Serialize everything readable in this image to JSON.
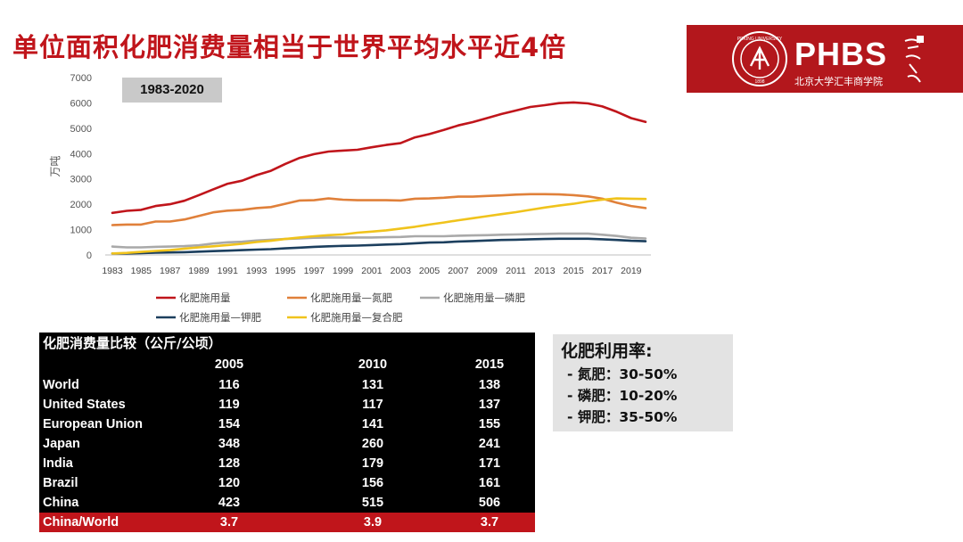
{
  "header": {
    "title": "单位面积化肥消费量相当于世界平均水平近4倍",
    "brand": "PHBS",
    "brand_sub": "北京大学汇丰商学院"
  },
  "chart_data": {
    "type": "line",
    "badge": "1983-2020",
    "ylabel": "万吨",
    "ylim": [
      0,
      7000
    ],
    "yticks": [
      0,
      1000,
      2000,
      3000,
      4000,
      5000,
      6000,
      7000
    ],
    "xticks": [
      "1983",
      "1985",
      "1987",
      "1989",
      "1991",
      "1993",
      "1995",
      "1997",
      "1999",
      "2001",
      "2003",
      "2005",
      "2007",
      "2009",
      "2011",
      "2013",
      "2015",
      "2017",
      "2019"
    ],
    "x": [
      1983,
      1984,
      1985,
      1986,
      1987,
      1988,
      1989,
      1990,
      1991,
      1992,
      1993,
      1994,
      1995,
      1996,
      1997,
      1998,
      1999,
      2000,
      2001,
      2002,
      2003,
      2004,
      2005,
      2006,
      2007,
      2008,
      2009,
      2010,
      2011,
      2012,
      2013,
      2014,
      2015,
      2016,
      2017,
      2018,
      2019,
      2020
    ],
    "series": [
      {
        "name": "化肥施用量",
        "color": "#c0151b",
        "values": [
          1660,
          1740,
          1780,
          1930,
          2000,
          2140,
          2360,
          2590,
          2810,
          2930,
          3150,
          3320,
          3590,
          3830,
          3980,
          4080,
          4120,
          4150,
          4250,
          4340,
          4410,
          4640,
          4770,
          4930,
          5110,
          5240,
          5400,
          5560,
          5700,
          5840,
          5910,
          5990,
          6020,
          5980,
          5860,
          5650,
          5400,
          5250
        ]
      },
      {
        "name": "化肥施用量—氮肥",
        "color": "#e0803a",
        "values": [
          1180,
          1200,
          1200,
          1320,
          1320,
          1400,
          1540,
          1680,
          1750,
          1780,
          1850,
          1890,
          2020,
          2150,
          2160,
          2230,
          2180,
          2160,
          2160,
          2160,
          2150,
          2220,
          2230,
          2260,
          2300,
          2300,
          2330,
          2350,
          2380,
          2400,
          2400,
          2390,
          2360,
          2310,
          2220,
          2060,
          1930,
          1850
        ]
      },
      {
        "name": "化肥施用量—磷肥",
        "color": "#a9a9a9",
        "values": [
          330,
          300,
          300,
          320,
          330,
          350,
          380,
          450,
          500,
          520,
          570,
          600,
          630,
          650,
          680,
          690,
          690,
          690,
          690,
          700,
          710,
          740,
          740,
          740,
          760,
          770,
          780,
          800,
          810,
          820,
          830,
          840,
          840,
          840,
          800,
          750,
          680,
          650
        ]
      },
      {
        "name": "化肥施用量—钾肥",
        "color": "#1c3f5e",
        "values": [
          60,
          60,
          70,
          90,
          100,
          110,
          130,
          150,
          170,
          190,
          210,
          230,
          260,
          290,
          320,
          340,
          360,
          370,
          390,
          410,
          430,
          460,
          490,
          500,
          530,
          550,
          570,
          590,
          600,
          620,
          630,
          640,
          640,
          640,
          620,
          590,
          560,
          540
        ]
      },
      {
        "name": "化肥施用量—复合肥",
        "color": "#f0c31c",
        "values": [
          60,
          80,
          120,
          160,
          190,
          250,
          300,
          340,
          390,
          440,
          510,
          560,
          630,
          690,
          740,
          780,
          810,
          880,
          920,
          970,
          1040,
          1110,
          1200,
          1280,
          1370,
          1450,
          1530,
          1610,
          1690,
          1780,
          1870,
          1950,
          2020,
          2110,
          2180,
          2230,
          2220,
          2210
        ]
      }
    ]
  },
  "table": {
    "caption": "化肥消费量比较（公斤/公顷）",
    "headers": [
      "2005",
      "2010",
      "2015"
    ],
    "rows": [
      {
        "label": "World",
        "v": [
          "116",
          "131",
          "138"
        ]
      },
      {
        "label": "United States",
        "v": [
          "119",
          "117",
          "137"
        ]
      },
      {
        "label": "European Union",
        "v": [
          "154",
          "141",
          "155"
        ]
      },
      {
        "label": "Japan",
        "v": [
          "348",
          "260",
          "241"
        ]
      },
      {
        "label": "India",
        "v": [
          "128",
          "179",
          "171"
        ]
      },
      {
        "label": "Brazil",
        "v": [
          "120",
          "156",
          "161"
        ]
      },
      {
        "label": "China",
        "v": [
          "423",
          "515",
          "506"
        ]
      },
      {
        "label": "China/World",
        "v": [
          "3.7",
          "3.9",
          "3.7"
        ]
      }
    ]
  },
  "rates": {
    "title": "化肥利用率:",
    "items": [
      "- 氮肥：30-50%",
      "- 磷肥：10-20%",
      "- 钾肥：35-50%"
    ]
  }
}
